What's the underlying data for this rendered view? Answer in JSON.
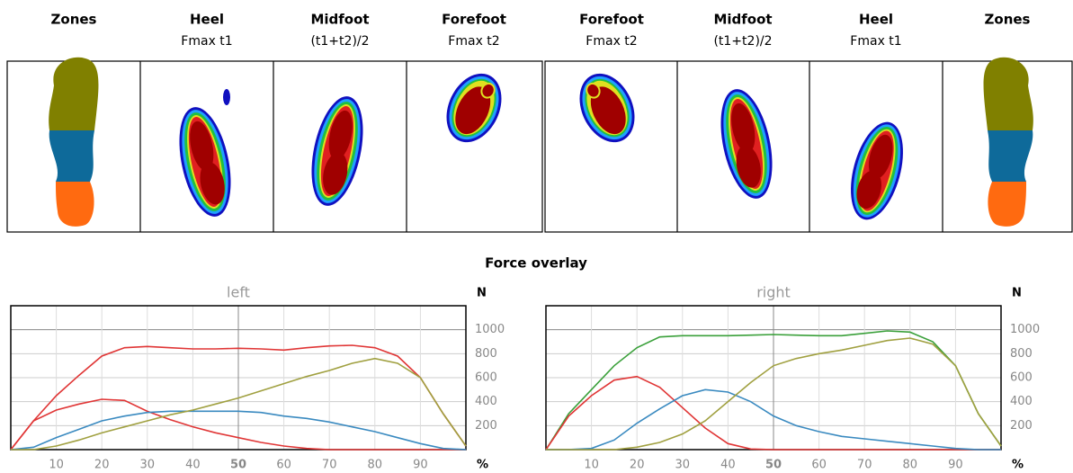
{
  "panels": [
    {
      "title": "Zones",
      "subtitle": null
    },
    {
      "title": "Heel",
      "subtitle": "Fmax t1"
    },
    {
      "title": "Midfoot",
      "subtitle": "(t1+t2)/2"
    },
    {
      "title": "Forefoot",
      "subtitle": "Fmax t2"
    },
    {
      "title": "Forefoot",
      "subtitle": "Fmax t2"
    },
    {
      "title": "Midfoot",
      "subtitle": "(t1+t2)/2"
    },
    {
      "title": "Heel",
      "subtitle": "Fmax t1"
    },
    {
      "title": "Zones",
      "subtitle": null
    }
  ],
  "overlay_title": "Force overlay",
  "chart_data": [
    {
      "type": "line",
      "title": "left",
      "y_unit": "N",
      "x_unit": "%",
      "x": [
        0,
        5,
        10,
        15,
        20,
        25,
        30,
        35,
        40,
        45,
        50,
        55,
        60,
        65,
        70,
        75,
        80,
        85,
        90,
        95,
        100
      ],
      "xlim": [
        0,
        100
      ],
      "xticks": [
        10,
        20,
        30,
        40,
        50,
        60,
        70,
        80,
        90
      ],
      "ylim": [
        0,
        1200
      ],
      "yticks": [
        200,
        400,
        600,
        800,
        1000
      ],
      "grid": true,
      "series": [
        {
          "color": "#e03535",
          "values": [
            0,
            240,
            450,
            620,
            780,
            850,
            860,
            850,
            840,
            840,
            845,
            840,
            830,
            850,
            865,
            870,
            850,
            780,
            600,
            300,
            30
          ]
        },
        {
          "color": "#e03535",
          "values": [
            0,
            240,
            330,
            380,
            420,
            410,
            320,
            250,
            190,
            140,
            100,
            60,
            30,
            10,
            0,
            0,
            0,
            0,
            0,
            0,
            0
          ]
        },
        {
          "color": "#3a8ac0",
          "values": [
            0,
            20,
            100,
            170,
            240,
            280,
            310,
            320,
            320,
            320,
            320,
            310,
            280,
            260,
            230,
            190,
            150,
            100,
            50,
            10,
            0
          ]
        },
        {
          "color": "#a0a040",
          "values": [
            0,
            0,
            30,
            80,
            140,
            190,
            240,
            290,
            330,
            380,
            430,
            490,
            550,
            610,
            660,
            720,
            760,
            720,
            600,
            300,
            30
          ]
        }
      ]
    },
    {
      "type": "line",
      "title": "right",
      "y_unit": "N",
      "x_unit": "%",
      "x": [
        0,
        5,
        10,
        15,
        20,
        25,
        30,
        35,
        40,
        45,
        50,
        55,
        60,
        65,
        70,
        75,
        80,
        85,
        90,
        95,
        100
      ],
      "xlim": [
        0,
        100
      ],
      "xticks": [
        10,
        20,
        30,
        40,
        50,
        60,
        70,
        80,
        90
      ],
      "ylim": [
        0,
        1200
      ],
      "yticks": [
        200,
        400,
        600,
        800,
        1000
      ],
      "grid": true,
      "series": [
        {
          "color": "#3aa03a",
          "values": [
            0,
            300,
            500,
            700,
            850,
            940,
            950,
            950,
            950,
            955,
            960,
            955,
            950,
            950,
            970,
            990,
            980,
            900,
            700,
            300,
            30
          ]
        },
        {
          "color": "#e03535",
          "values": [
            0,
            280,
            450,
            580,
            610,
            520,
            350,
            180,
            50,
            5,
            0,
            0,
            0,
            0,
            0,
            0,
            0,
            0,
            0,
            0,
            0
          ]
        },
        {
          "color": "#3a8ac0",
          "values": [
            0,
            0,
            10,
            80,
            220,
            340,
            450,
            500,
            480,
            400,
            280,
            200,
            150,
            110,
            90,
            70,
            50,
            30,
            10,
            0,
            0
          ]
        },
        {
          "color": "#a0a040",
          "values": [
            0,
            0,
            0,
            0,
            20,
            60,
            130,
            240,
            400,
            560,
            700,
            760,
            800,
            830,
            870,
            910,
            930,
            880,
            700,
            300,
            30
          ]
        }
      ]
    }
  ]
}
